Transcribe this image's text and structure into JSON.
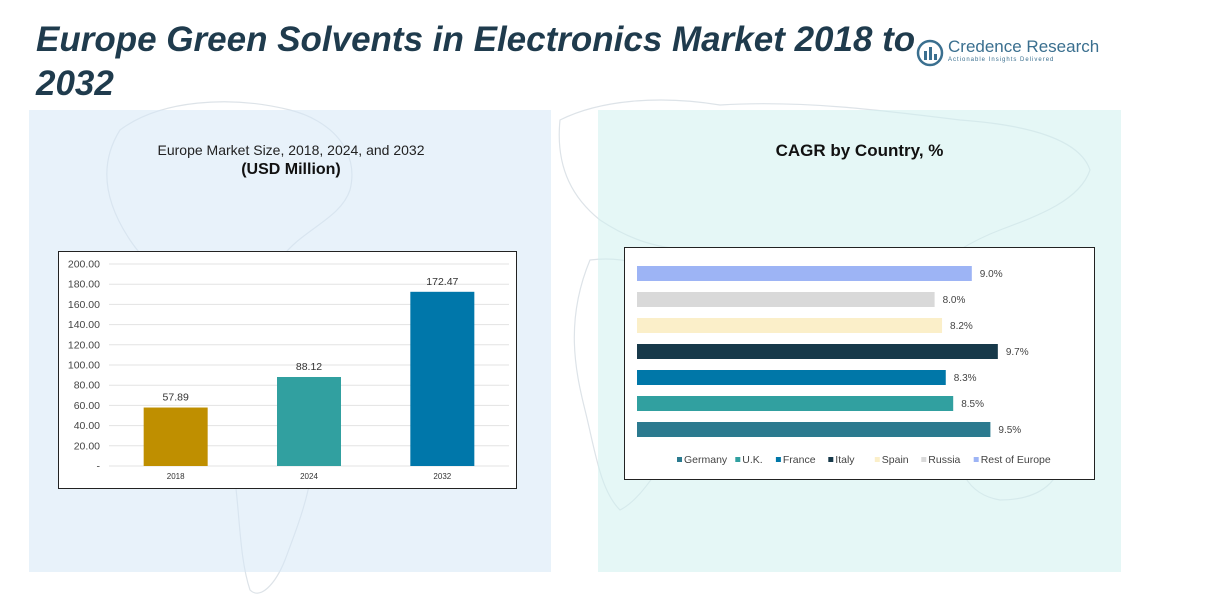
{
  "page": {
    "title": "Europe Green Solvents in Electronics Market 2018 to 2032",
    "logo_name": "Credence Research",
    "logo_tagline": "Actionable Insights Delivered",
    "colors": {
      "title": "#1f3b4d",
      "logo": "#3a6f8f",
      "panel_left_bg": "#d6e8f5",
      "panel_right_bg": "#d0f0ee"
    }
  },
  "left_panel": {
    "title": "Europe Market Size, 2018, 2024, and 2032",
    "subtitle": "(USD Million)"
  },
  "right_panel": {
    "title": "CAGR by Country, %"
  },
  "chart_data": [
    {
      "type": "bar",
      "orientation": "vertical",
      "categories": [
        "2018",
        "2024",
        "2032"
      ],
      "values": [
        57.89,
        88.12,
        172.47
      ],
      "value_labels": [
        "57.89",
        "88.12",
        "172.47"
      ],
      "colors": [
        "#bf8f00",
        "#31a0a0",
        "#0077aa"
      ],
      "ylim": [
        0,
        200
      ],
      "yticks": [
        "-",
        "20.00",
        "40.00",
        "60.00",
        "80.00",
        "100.00",
        "120.00",
        "140.00",
        "160.00",
        "180.00",
        "200.00"
      ],
      "grid": true,
      "legend": "none"
    },
    {
      "type": "bar",
      "orientation": "horizontal",
      "categories": [
        "Rest of Europe",
        "Russia",
        "Spain",
        "Italy",
        "France",
        "U.K.",
        "Germany"
      ],
      "values": [
        9.0,
        8.0,
        8.2,
        9.7,
        8.3,
        8.5,
        9.5
      ],
      "value_labels": [
        "9.0%",
        "8.0%",
        "8.2%",
        "9.7%",
        "8.3%",
        "8.5%",
        "9.5%"
      ],
      "colors": [
        "#9db4f5",
        "#d9d9d9",
        "#fbefc9",
        "#17394a",
        "#0077a8",
        "#31a0a0",
        "#2b7a8f"
      ],
      "xlim": [
        0,
        10
      ],
      "legend": "bottom",
      "legend_order": [
        "Germany",
        "U.K.",
        "France",
        "Italy",
        "Spain",
        "Russia",
        "Rest of Europe"
      ]
    }
  ]
}
